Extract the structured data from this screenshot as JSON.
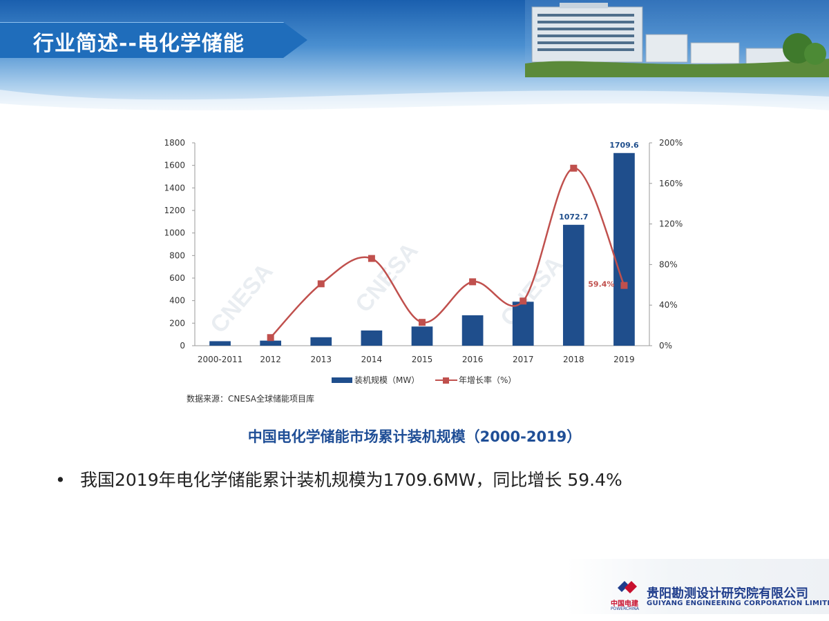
{
  "slide": {
    "title": "行业简述--电化学储能"
  },
  "chart_data": {
    "type": "bar",
    "categories": [
      "2000-2011",
      "2012",
      "2013",
      "2014",
      "2015",
      "2016",
      "2017",
      "2018",
      "2019"
    ],
    "series": [
      {
        "name": "装机规模（MW）",
        "type": "bar",
        "axis": "left",
        "values": [
          40,
          45,
          75,
          135,
          170,
          270,
          390,
          1072.7,
          1709.6
        ],
        "color": "#1f4e8c"
      },
      {
        "name": "年增长率（%）",
        "type": "line",
        "axis": "right",
        "values": [
          null,
          8,
          61,
          86,
          23,
          63,
          44,
          175,
          59.4
        ],
        "color": "#c0504d"
      }
    ],
    "data_labels": [
      {
        "series": 0,
        "index": 7,
        "text": "1072.7"
      },
      {
        "series": 0,
        "index": 8,
        "text": "1709.6"
      },
      {
        "series": 1,
        "index": 8,
        "text": "59.4%"
      }
    ],
    "y_left": {
      "min": 0,
      "max": 1800,
      "ticks": [
        "0",
        "200",
        "400",
        "600",
        "800",
        "1000",
        "1200",
        "1400",
        "1600",
        "1800"
      ]
    },
    "y_right": {
      "min": 0,
      "max": 200,
      "ticks": [
        "0%",
        "40%",
        "80%",
        "120%",
        "160%",
        "200%"
      ]
    },
    "legend_position": "bottom",
    "source_note": "数据来源：CNESA全球储能项目库",
    "watermark_text": "CNESA",
    "caption": "中国电化学储能市场累计装机规模（2000-2019）"
  },
  "bullet": "我国2019年电化学储能累计装机规模为1709.6MW，同比增长 59.4%",
  "footer": {
    "company_cn": "贵阳勘测设计研究院有限公司",
    "company_en": "GUIYANG ENGINEERING CORPORATION LIMITED",
    "logo_cn": "中国电建",
    "logo_en": "POWERCHINA"
  }
}
